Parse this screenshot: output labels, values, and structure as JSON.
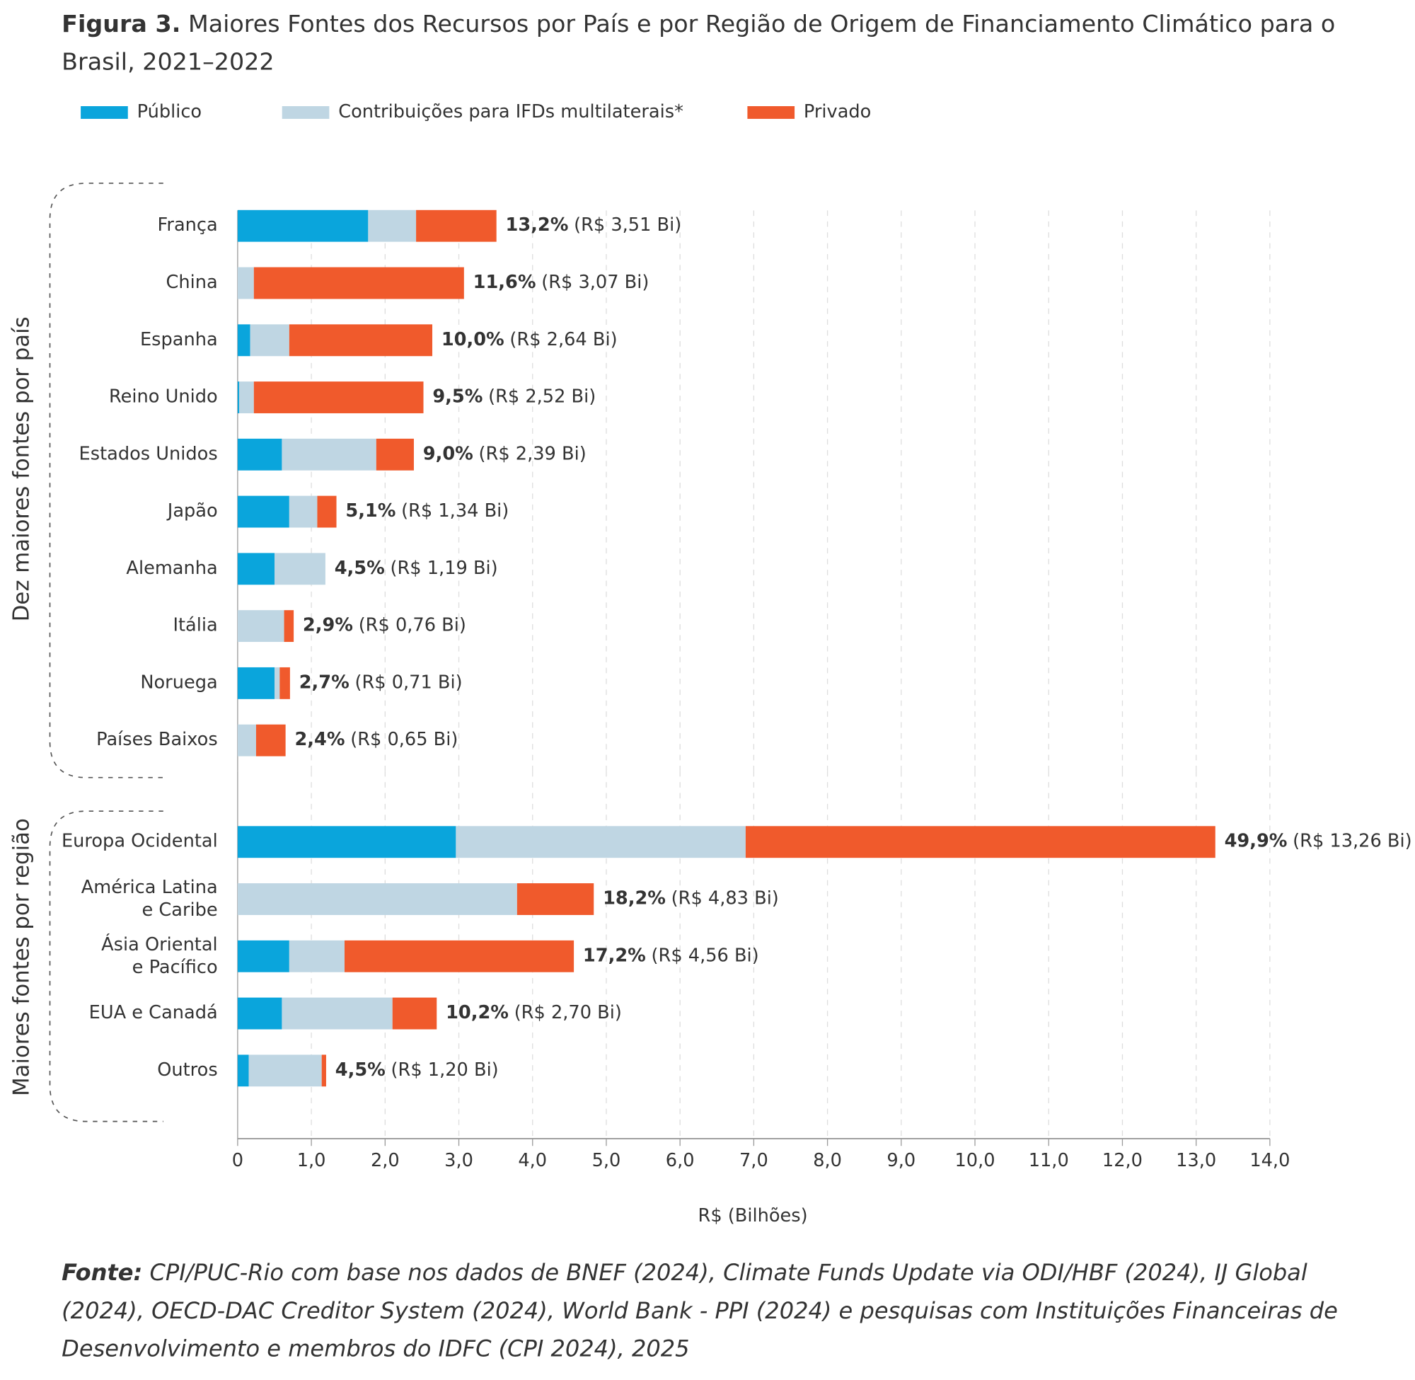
{
  "title_prefix": "Figura 3.",
  "title": "Maiores Fontes dos Recursos por País e por Região de Origem de Financiamento Climático para o Brasil, 2021–2022",
  "source_label": "Fonte:",
  "source": "CPI/PUC-Rio com base nos dados de BNEF (2024), Climate Funds Update via ODI/HBF (2024), IJ Global (2024), OECD-DAC Creditor System (2024), World Bank - PPI (2024) e pesquisas com Instituições Financeiras de Desenvolvimento e membros do IDFC (CPI 2024), 2025",
  "chart_data": [
    {
      "type": "bar",
      "orientation": "horizontal",
      "stacked": true,
      "group_label": "Dez maiores fontes por país",
      "categories": [
        "França",
        "China",
        "Espanha",
        "Reino Unido",
        "Estados Unidos",
        "Japão",
        "Alemanha",
        "Itália",
        "Noruega",
        "Países Baixos"
      ],
      "series": [
        {
          "name": "Público",
          "color": "#0aa5dc",
          "values": [
            1.77,
            0,
            0.17,
            0.02,
            0.6,
            0.7,
            0.5,
            0,
            0.5,
            0
          ]
        },
        {
          "name": "Contribuições para IFDs multilaterais*",
          "color": "#bfd6e3",
          "values": [
            0.65,
            0.22,
            0.53,
            0.2,
            1.28,
            0.38,
            0.69,
            0.63,
            0.07,
            0.25
          ]
        },
        {
          "name": "Privado",
          "color": "#f05a2c",
          "values": [
            1.09,
            2.85,
            1.94,
            2.3,
            0.51,
            0.26,
            0,
            0.13,
            0.14,
            0.4
          ]
        }
      ],
      "share_labels": [
        "13,2%",
        "11,6%",
        "10,0%",
        "9,5%",
        "9,0%",
        "5,1%",
        "4,5%",
        "2,9%",
        "2,7%",
        "2,4%"
      ],
      "totals": [
        3.51,
        3.07,
        2.64,
        2.52,
        2.39,
        1.34,
        1.19,
        0.76,
        0.71,
        0.65
      ],
      "total_labels": [
        "(R$ 3,51 Bi)",
        "(R$ 3,07 Bi)",
        "(R$ 2,64 Bi)",
        "(R$ 2,52 Bi)",
        "(R$ 2,39 Bi)",
        "(R$ 1,34 Bi)",
        "(R$ 1,19 Bi)",
        "(R$ 0,76 Bi)",
        "(R$ 0,71 Bi)",
        "(R$ 0,65 Bi)"
      ],
      "xlim": [
        0,
        14
      ],
      "xticks": [
        0,
        {
          "value": 1,
          "label": "1,0"
        },
        {
          "value": 2,
          "label": "2,0"
        },
        {
          "value": 3,
          "label": "3,0"
        },
        {
          "value": 4,
          "label": "4,0"
        },
        {
          "value": 5,
          "label": "5,0"
        },
        {
          "value": 6,
          "label": "6,0"
        },
        {
          "value": 7,
          "label": "7,0"
        },
        {
          "value": 8,
          "label": "8,0"
        },
        {
          "value": 9,
          "label": "9,0"
        },
        {
          "value": 10,
          "label": "10,0"
        },
        {
          "value": 11,
          "label": "11,0"
        },
        {
          "value": 12,
          "label": "12,0"
        },
        {
          "value": 13,
          "label": "13,0"
        },
        {
          "value": 14,
          "label": "14,0"
        }
      ],
      "grid": true
    },
    {
      "type": "bar",
      "orientation": "horizontal",
      "stacked": true,
      "group_label": "Maiores fontes por região",
      "categories": [
        "Europa Ocidental",
        [
          "América Latina",
          "e Caribe"
        ],
        [
          "Ásia Oriental",
          "e Pacífico"
        ],
        "EUA e Canadá",
        "Outros"
      ],
      "series": [
        {
          "name": "Público",
          "color": "#0aa5dc",
          "values": [
            2.96,
            0,
            0.7,
            0.6,
            0.15
          ]
        },
        {
          "name": "Contribuições para IFDs multilaterais*",
          "color": "#bfd6e3",
          "values": [
            3.93,
            3.79,
            0.75,
            1.5,
            0.99
          ]
        },
        {
          "name": "Privado",
          "color": "#f05a2c",
          "values": [
            6.37,
            1.04,
            3.11,
            0.6,
            0.06
          ]
        }
      ],
      "share_labels": [
        "49,9%",
        "18,2%",
        "17,2%",
        "10,2%",
        "4,5%"
      ],
      "totals": [
        13.26,
        4.83,
        4.56,
        2.7,
        1.2
      ],
      "total_labels": [
        "(R$ 13,26 Bi)",
        "(R$ 4,83 Bi)",
        "(R$ 4,56 Bi)",
        "(R$ 2,70 Bi)",
        "(R$ 1,20 Bi)"
      ],
      "xlim": [
        0,
        14
      ],
      "xticks": [
        0,
        {
          "value": 1,
          "label": "1,0"
        },
        {
          "value": 2,
          "label": "2,0"
        },
        {
          "value": 3,
          "label": "3,0"
        },
        {
          "value": 4,
          "label": "4,0"
        },
        {
          "value": 5,
          "label": "5,0"
        },
        {
          "value": 6,
          "label": "6,0"
        },
        {
          "value": 7,
          "label": "7,0"
        },
        {
          "value": 8,
          "label": "8,0"
        },
        {
          "value": 9,
          "label": "9,0"
        },
        {
          "value": 10,
          "label": "10,0"
        },
        {
          "value": 11,
          "label": "11,0"
        },
        {
          "value": 12,
          "label": "12,0"
        },
        {
          "value": 13,
          "label": "13,0"
        },
        {
          "value": 14,
          "label": "14,0"
        }
      ],
      "xlabel": "R$ (Bilhões)",
      "grid": true
    }
  ]
}
